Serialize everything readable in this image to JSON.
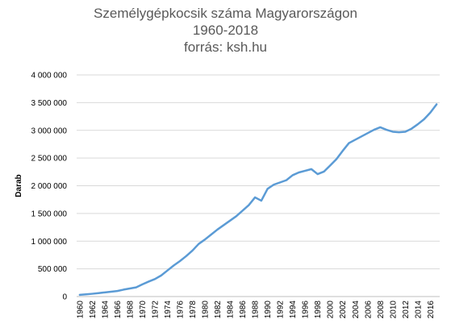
{
  "chart_data": {
    "type": "line",
    "title": "Személygépkocsik száma Magyarországon",
    "subtitle": "1960-2018",
    "source": "forrás: ksh.hu",
    "xlabel": "",
    "ylabel": "Darab",
    "xlim": [
      1960,
      2017
    ],
    "ylim": [
      0,
      4000000
    ],
    "y_ticks": [
      0,
      500000,
      1000000,
      1500000,
      2000000,
      2500000,
      3000000,
      3500000,
      4000000
    ],
    "y_tick_labels": [
      "0",
      "500 000",
      "1 000 000",
      "1 500 000",
      "2 000 000",
      "2 500 000",
      "3 000 000",
      "3 500 000",
      "4 000 000"
    ],
    "x_tick_labels": [
      "1960",
      "1962",
      "1964",
      "1966",
      "1968",
      "1970",
      "1972",
      "1974",
      "1976",
      "1978",
      "1980",
      "1982",
      "1984",
      "1986",
      "1988",
      "1990",
      "1992",
      "1994",
      "1996",
      "1998",
      "2000",
      "2002",
      "2004",
      "2006",
      "2008",
      "2010",
      "2012",
      "2014",
      "2016"
    ],
    "grid": {
      "horizontal": true,
      "vertical": false
    },
    "legend": "none",
    "series": [
      {
        "color": "#5b9bd5",
        "x": [
          1960,
          1961,
          1962,
          1963,
          1964,
          1965,
          1966,
          1967,
          1968,
          1969,
          1970,
          1971,
          1972,
          1973,
          1974,
          1975,
          1976,
          1977,
          1978,
          1979,
          1980,
          1981,
          1982,
          1983,
          1984,
          1985,
          1986,
          1987,
          1988,
          1989,
          1990,
          1991,
          1992,
          1993,
          1994,
          1995,
          1996,
          1997,
          1998,
          1999,
          2000,
          2001,
          2002,
          2003,
          2004,
          2005,
          2006,
          2007,
          2008,
          2009,
          2010,
          2011,
          2012,
          2013,
          2014,
          2015,
          2016,
          2017
        ],
        "values": [
          31000,
          40000,
          50000,
          62000,
          75000,
          88000,
          100000,
          125000,
          145000,
          165000,
          220000,
          270000,
          315000,
          380000,
          470000,
          560000,
          640000,
          730000,
          830000,
          950000,
          1030000,
          1120000,
          1210000,
          1290000,
          1370000,
          1450000,
          1550000,
          1650000,
          1790000,
          1730000,
          1945000,
          2020000,
          2060000,
          2100000,
          2190000,
          2240000,
          2270000,
          2300000,
          2210000,
          2255000,
          2365000,
          2480000,
          2630000,
          2770000,
          2830000,
          2890000,
          2950000,
          3010000,
          3055000,
          3010000,
          2975000,
          2965000,
          2975000,
          3030000,
          3110000,
          3200000,
          3320000,
          3470000
        ]
      }
    ]
  }
}
